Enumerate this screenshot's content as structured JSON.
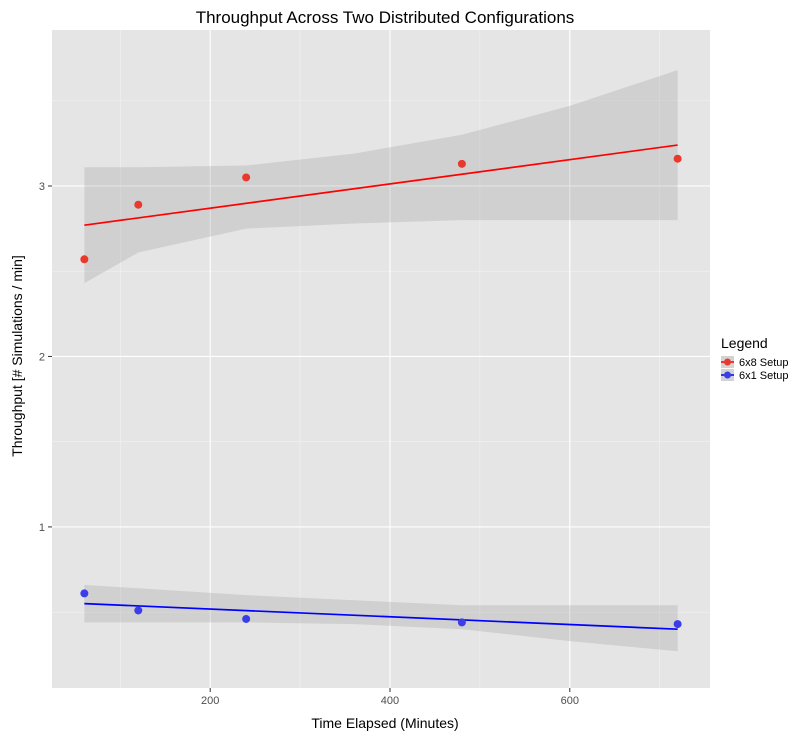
{
  "chart_data": {
    "type": "scatter",
    "title": "Throughput Across Two Distributed Configurations",
    "xlabel": "Time Elapsed (Minutes)",
    "ylabel": "Throughput [# Simulations / min]",
    "xlim": [
      24,
      756
    ],
    "ylim": [
      0.055,
      3.915
    ],
    "x_ticks": [
      200,
      400,
      600
    ],
    "y_ticks": [
      1,
      2,
      3
    ],
    "grid": true,
    "legend": {
      "title": "Legend",
      "position": "right"
    },
    "series": [
      {
        "name": "6x8 Setup",
        "color": "#e8392d",
        "line_color": "#ff0000",
        "points": [
          {
            "x": 60,
            "y": 2.57
          },
          {
            "x": 120,
            "y": 2.89
          },
          {
            "x": 240,
            "y": 3.05
          },
          {
            "x": 480,
            "y": 3.13
          },
          {
            "x": 720,
            "y": 3.16
          }
        ],
        "fit": {
          "x": [
            60,
            720
          ],
          "y": [
            2.77,
            3.24
          ]
        },
        "band": {
          "x": [
            60,
            120,
            240,
            360,
            480,
            600,
            720
          ],
          "lower": [
            2.43,
            2.61,
            2.75,
            2.78,
            2.8,
            2.8,
            2.8
          ],
          "upper": [
            3.11,
            3.11,
            3.12,
            3.19,
            3.3,
            3.47,
            3.68
          ]
        }
      },
      {
        "name": "6x1 Setup",
        "color": "#3b3ee8",
        "line_color": "#0000ff",
        "points": [
          {
            "x": 60,
            "y": 0.61
          },
          {
            "x": 120,
            "y": 0.51
          },
          {
            "x": 240,
            "y": 0.46
          },
          {
            "x": 480,
            "y": 0.44
          },
          {
            "x": 720,
            "y": 0.43
          }
        ],
        "fit": {
          "x": [
            60,
            720
          ],
          "y": [
            0.55,
            0.4
          ]
        },
        "band": {
          "x": [
            60,
            120,
            240,
            360,
            480,
            600,
            720
          ],
          "lower": [
            0.44,
            0.44,
            0.44,
            0.43,
            0.4,
            0.33,
            0.27
          ],
          "upper": [
            0.66,
            0.64,
            0.6,
            0.57,
            0.54,
            0.54,
            0.54
          ]
        }
      }
    ]
  }
}
